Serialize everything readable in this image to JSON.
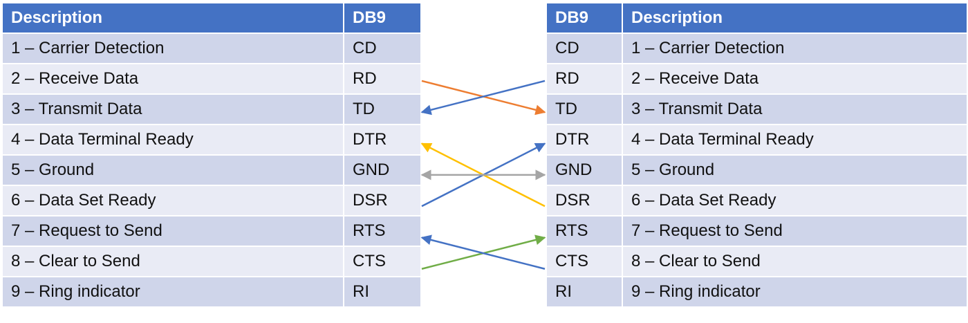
{
  "left_table": {
    "headers": {
      "description": "Description",
      "db9": "DB9"
    },
    "rows": [
      {
        "description": "1 – Carrier Detection",
        "db9": "CD"
      },
      {
        "description": "2 – Receive Data",
        "db9": "RD"
      },
      {
        "description": "3 – Transmit Data",
        "db9": "TD"
      },
      {
        "description": "4 – Data Terminal Ready",
        "db9": "DTR"
      },
      {
        "description": "5 – Ground",
        "db9": "GND"
      },
      {
        "description": "6 – Data Set Ready",
        "db9": "DSR"
      },
      {
        "description": "7 – Request to Send",
        "db9": "RTS"
      },
      {
        "description": "8 – Clear to Send",
        "db9": "CTS"
      },
      {
        "description": "9 – Ring indicator",
        "db9": "RI"
      }
    ]
  },
  "right_table": {
    "headers": {
      "db9": "DB9",
      "description": "Description"
    },
    "rows": [
      {
        "db9": "CD",
        "description": "1 – Carrier Detection"
      },
      {
        "db9": "RD",
        "description": "2 – Receive Data"
      },
      {
        "db9": "TD",
        "description": "3 – Transmit Data"
      },
      {
        "db9": "DTR",
        "description": "4 – Data Terminal Ready"
      },
      {
        "db9": "GND",
        "description": "5 – Ground"
      },
      {
        "db9": "DSR",
        "description": "6 – Data Set Ready"
      },
      {
        "db9": "RTS",
        "description": "7 – Request to Send"
      },
      {
        "db9": "CTS",
        "description": "8 – Clear to Send"
      },
      {
        "db9": "RI",
        "description": "9 – Ring indicator"
      }
    ]
  },
  "connections": [
    {
      "from": "RD",
      "to": "TD",
      "direction": "left-to-right",
      "color": "#ed7d31"
    },
    {
      "from": "RD",
      "to": "TD",
      "direction": "right-to-left",
      "color": "#4472c4"
    },
    {
      "from": "DSR",
      "to": "DTR",
      "direction": "left-to-right",
      "color": "#4472c4"
    },
    {
      "from": "DSR",
      "to": "DTR",
      "direction": "right-to-left",
      "color": "#ffc000"
    },
    {
      "from": "GND",
      "to": "GND",
      "direction": "both",
      "color": "#a5a5a5"
    },
    {
      "from": "CTS",
      "to": "RTS",
      "direction": "left-to-right",
      "color": "#70ad47"
    },
    {
      "from": "CTS",
      "to": "RTS",
      "direction": "right-to-left",
      "color": "#4472c4"
    }
  ],
  "colors": {
    "header_bg": "#4472c4",
    "row_odd_bg": "#cfd5ea",
    "row_even_bg": "#e9ebf5"
  }
}
